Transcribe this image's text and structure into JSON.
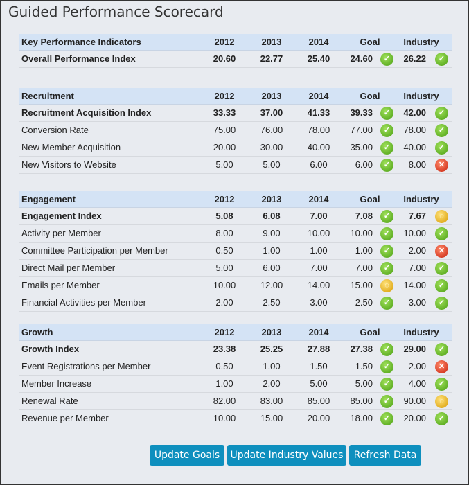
{
  "title": "Guided Performance Scorecard",
  "icons": {
    "ok": "check-circle-icon",
    "warn": "warning-circle-icon",
    "bad": "x-circle-icon"
  },
  "colors": {
    "ok": "#5cb82a",
    "warn": "#e8b000",
    "bad": "#d8300f",
    "button": "#0e8fbe",
    "header": "#d4e3f5"
  },
  "sections": [
    {
      "name": "Key Performance Indicators",
      "cols": [
        "2012",
        "2013",
        "2014",
        "Goal",
        "Industry"
      ],
      "rows": [
        {
          "label": "Overall Performance Index",
          "bold": true,
          "v": [
            "20.60",
            "22.77",
            "25.40"
          ],
          "goal": "24.60",
          "goal_status": "ok",
          "industry": "26.22",
          "industry_status": "ok"
        }
      ]
    },
    {
      "name": "Recruitment",
      "cols": [
        "2012",
        "2013",
        "2014",
        "Goal",
        "Industry"
      ],
      "rows": [
        {
          "label": "Recruitment Acquisition Index",
          "bold": true,
          "v": [
            "33.33",
            "37.00",
            "41.33"
          ],
          "goal": "39.33",
          "goal_status": "ok",
          "industry": "42.00",
          "industry_status": "ok"
        },
        {
          "label": "Conversion Rate",
          "v": [
            "75.00",
            "76.00",
            "78.00"
          ],
          "goal": "77.00",
          "goal_status": "ok",
          "industry": "78.00",
          "industry_status": "ok"
        },
        {
          "label": "New Member Acquisition",
          "v": [
            "20.00",
            "30.00",
            "40.00"
          ],
          "goal": "35.00",
          "goal_status": "ok",
          "industry": "40.00",
          "industry_status": "ok"
        },
        {
          "label": "New Visitors to Website",
          "v": [
            "5.00",
            "5.00",
            "6.00"
          ],
          "goal": "6.00",
          "goal_status": "ok",
          "industry": "8.00",
          "industry_status": "bad"
        }
      ]
    },
    {
      "name": "Engagement",
      "cols": [
        "2012",
        "2013",
        "2014",
        "Goal",
        "Industry"
      ],
      "rows": [
        {
          "label": "Engagement Index",
          "bold": true,
          "v": [
            "5.08",
            "6.08",
            "7.00"
          ],
          "goal": "7.08",
          "goal_status": "ok",
          "industry": "7.67",
          "industry_status": "warn"
        },
        {
          "label": "Activity per Member",
          "v": [
            "8.00",
            "9.00",
            "10.00"
          ],
          "goal": "10.00",
          "goal_status": "ok",
          "industry": "10.00",
          "industry_status": "ok"
        },
        {
          "label": "Committee Participation per Member",
          "v": [
            "0.50",
            "1.00",
            "1.00"
          ],
          "goal": "1.00",
          "goal_status": "ok",
          "industry": "2.00",
          "industry_status": "bad"
        },
        {
          "label": "Direct Mail per Member",
          "v": [
            "5.00",
            "6.00",
            "7.00"
          ],
          "goal": "7.00",
          "goal_status": "ok",
          "industry": "7.00",
          "industry_status": "ok"
        },
        {
          "label": "Emails per Member",
          "v": [
            "10.00",
            "12.00",
            "14.00"
          ],
          "goal": "15.00",
          "goal_status": "warn",
          "industry": "14.00",
          "industry_status": "ok"
        },
        {
          "label": "Financial Activities per Member",
          "v": [
            "2.00",
            "2.50",
            "3.00"
          ],
          "goal": "2.50",
          "goal_status": "ok",
          "industry": "3.00",
          "industry_status": "ok"
        }
      ]
    },
    {
      "name": "Growth",
      "cols": [
        "2012",
        "2013",
        "2014",
        "Goal",
        "Industry"
      ],
      "rows": [
        {
          "label": "Growth Index",
          "bold": true,
          "v": [
            "23.38",
            "25.25",
            "27.88"
          ],
          "goal": "27.38",
          "goal_status": "ok",
          "industry": "29.00",
          "industry_status": "ok"
        },
        {
          "label": "Event Registrations per Member",
          "v": [
            "0.50",
            "1.00",
            "1.50"
          ],
          "goal": "1.50",
          "goal_status": "ok",
          "industry": "2.00",
          "industry_status": "bad"
        },
        {
          "label": "Member Increase",
          "v": [
            "1.00",
            "2.00",
            "5.00"
          ],
          "goal": "5.00",
          "goal_status": "ok",
          "industry": "4.00",
          "industry_status": "ok"
        },
        {
          "label": "Renewal Rate",
          "v": [
            "82.00",
            "83.00",
            "85.00"
          ],
          "goal": "85.00",
          "goal_status": "ok",
          "industry": "90.00",
          "industry_status": "warn"
        },
        {
          "label": "Revenue per Member",
          "v": [
            "10.00",
            "15.00",
            "20.00"
          ],
          "goal": "18.00",
          "goal_status": "ok",
          "industry": "20.00",
          "industry_status": "ok"
        }
      ]
    }
  ],
  "buttons": {
    "update_goals": "Update Goals",
    "update_industry": "Update Industry Values",
    "refresh": "Refresh Data"
  }
}
